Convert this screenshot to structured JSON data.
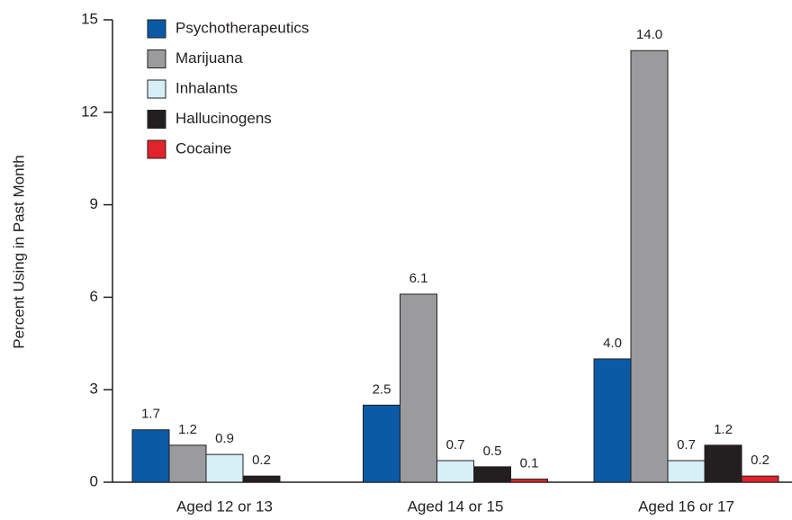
{
  "chart_data": {
    "type": "bar",
    "y_label": "Percent Using in Past Month",
    "categories": [
      "Aged 12 or 13",
      "Aged 14 or 15",
      "Aged 16 or 17"
    ],
    "series": [
      {
        "name": "Psychotherapeutics",
        "color": "#0b5aa6",
        "values": [
          1.7,
          2.5,
          4.0
        ],
        "value_labels": [
          "1.7",
          "2.5",
          "4.0"
        ]
      },
      {
        "name": "Marijuana",
        "color": "#9b9b9e",
        "values": [
          1.2,
          6.1,
          14.0
        ],
        "value_labels": [
          "1.2",
          "6.1",
          "14.0"
        ]
      },
      {
        "name": "Inhalants",
        "color": "#d6eff6",
        "values": [
          0.9,
          0.7,
          0.7
        ],
        "value_labels": [
          "0.9",
          "0.7",
          "0.7"
        ]
      },
      {
        "name": "Hallucinogens",
        "color": "#231f20",
        "values": [
          0.2,
          0.5,
          1.2
        ],
        "value_labels": [
          "0.2",
          "0.5",
          "1.2"
        ]
      },
      {
        "name": "Cocaine",
        "color": "#e2232a",
        "values": [
          null,
          0.1,
          0.2
        ],
        "value_labels": [
          null,
          "0.1",
          "0.2"
        ]
      }
    ],
    "ylim": [
      0,
      15
    ],
    "yticks": [
      0,
      3,
      6,
      9,
      12,
      15
    ],
    "legend": "upper left"
  }
}
